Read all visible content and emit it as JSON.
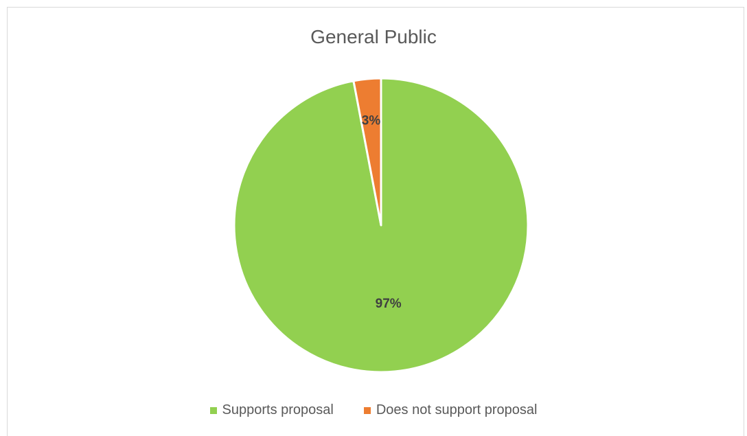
{
  "chart_data": {
    "type": "pie",
    "title": "General Public",
    "categories": [
      "Supports proposal",
      "Does not support proposal"
    ],
    "values": [
      97,
      3
    ],
    "data_labels": [
      "97%",
      "3%"
    ],
    "colors": [
      "#92d050",
      "#ed7d31"
    ],
    "legend_position": "bottom"
  }
}
